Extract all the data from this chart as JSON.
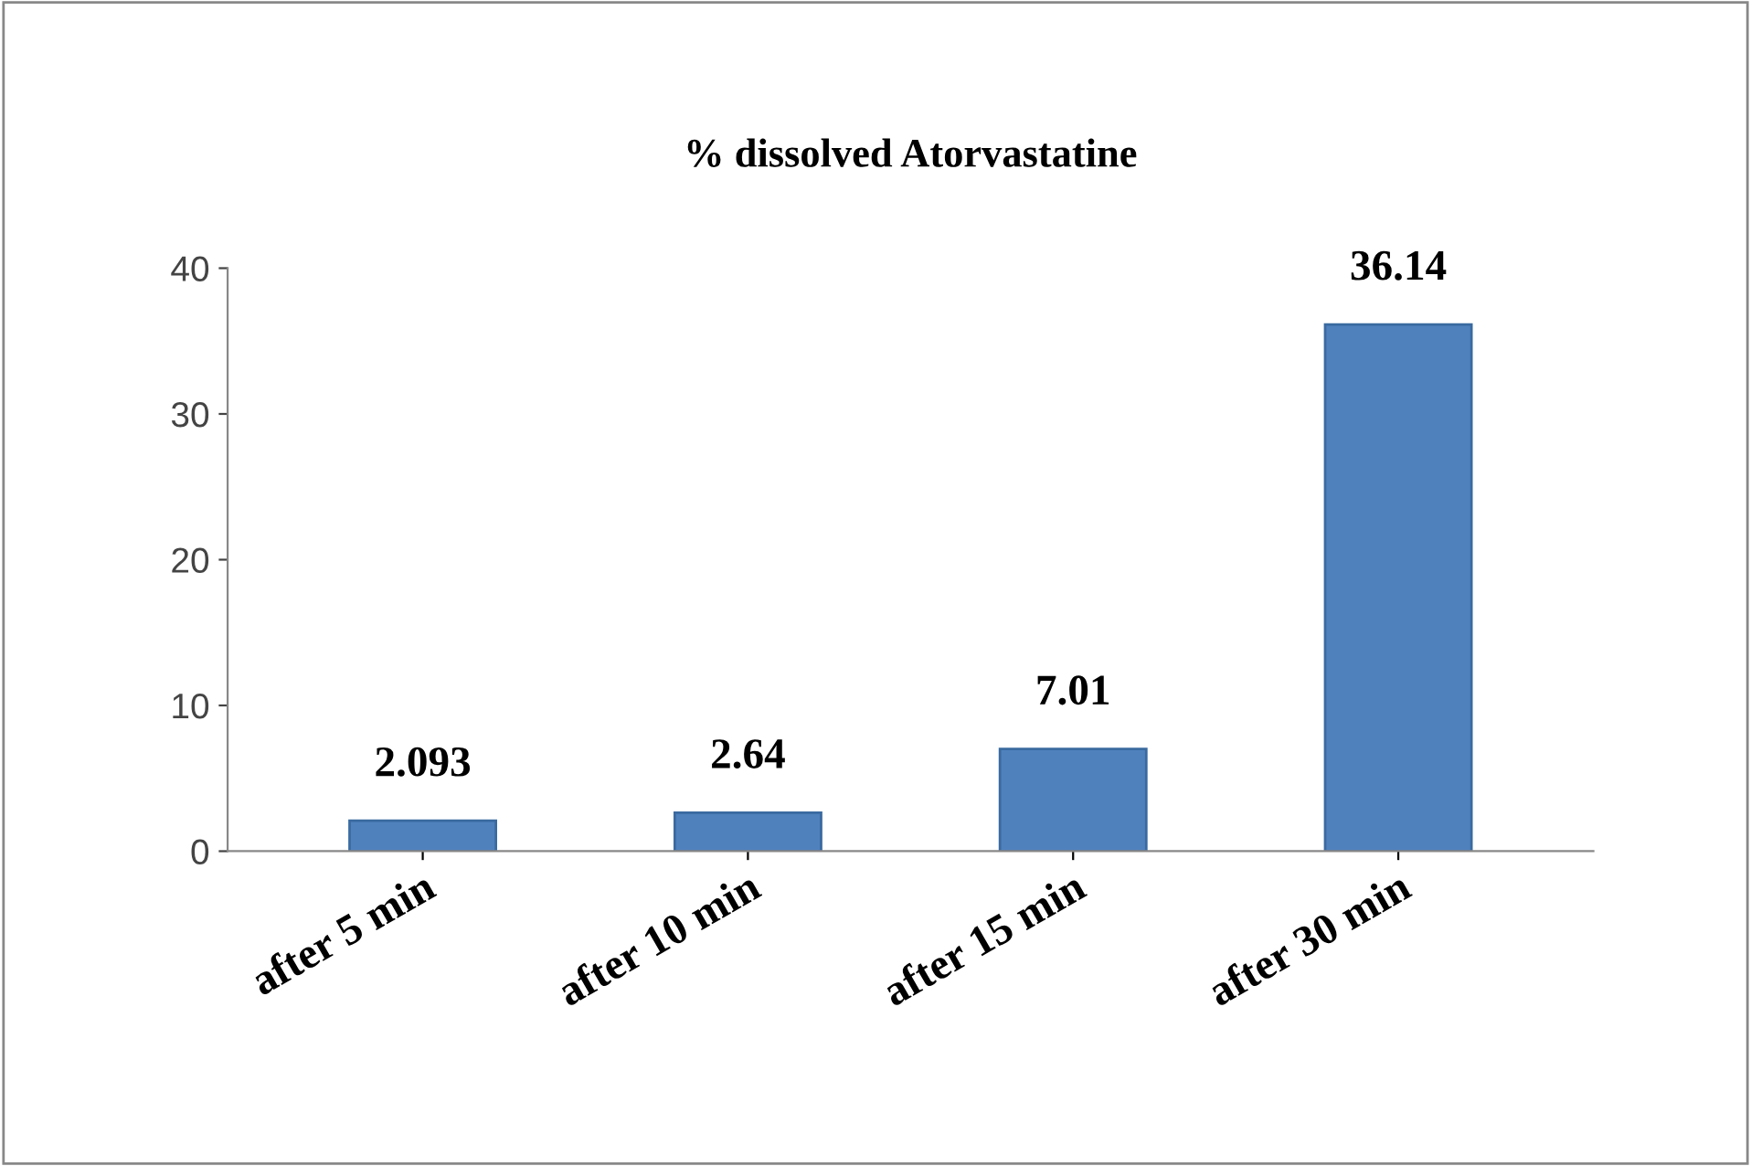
{
  "chart_data": {
    "type": "bar",
    "title": "% dissolved Atorvastatine",
    "categories": [
      "after 5 min",
      "after 10 min",
      "after 15 min",
      "after 30 min"
    ],
    "values": [
      2.093,
      2.64,
      7.01,
      36.14
    ],
    "color": "#4f81bd",
    "ylim": [
      0,
      40
    ],
    "yticks": [
      0,
      10,
      20,
      30,
      40
    ],
    "grid": false,
    "data_labels": true
  }
}
